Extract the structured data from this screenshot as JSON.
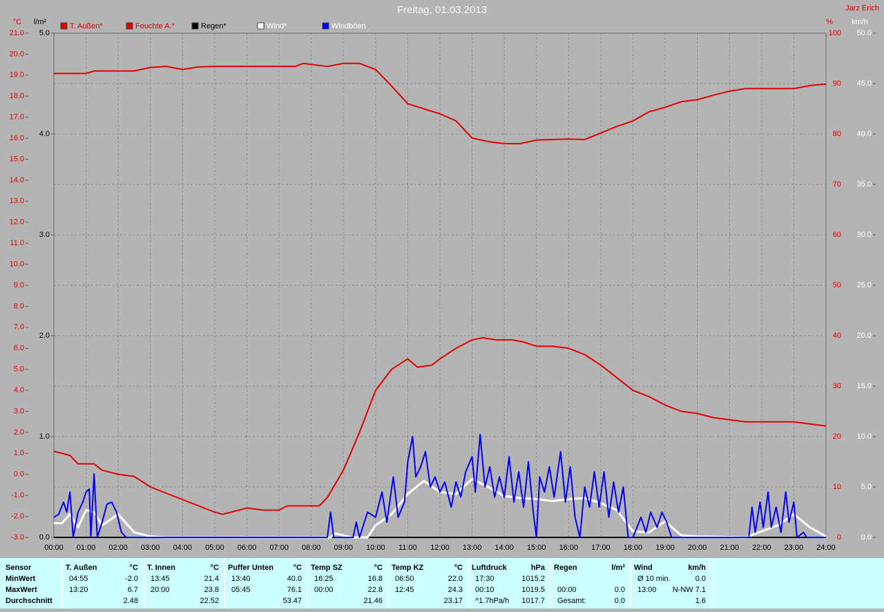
{
  "chart_data": {
    "type": "line",
    "title": "Freitag, 01.03.2013",
    "author": "Jarz Erich",
    "ylabel": "°C",
    "y2label": "%",
    "y3label": "l/m²",
    "y4label": "km/h",
    "axis_colors": {
      "y": "#e00000",
      "y2": "#e00000",
      "y3": "#000000",
      "y4": "#ffffff"
    },
    "xlim": [
      0,
      24
    ],
    "xticks": [
      {
        "value": 0,
        "label": "00:00"
      },
      {
        "value": 1,
        "label": "01:00"
      },
      {
        "value": 2,
        "label": "02:00"
      },
      {
        "value": 3,
        "label": "03:00"
      },
      {
        "value": 4,
        "label": "04:00"
      },
      {
        "value": 5,
        "label": "05:00"
      },
      {
        "value": 6,
        "label": "06:00"
      },
      {
        "value": 7,
        "label": "07:00"
      },
      {
        "value": 8,
        "label": "08:00"
      },
      {
        "value": 9,
        "label": "09:00"
      },
      {
        "value": 10,
        "label": "10:00"
      },
      {
        "value": 11,
        "label": "11:00"
      },
      {
        "value": 12,
        "label": "12:00"
      },
      {
        "value": 13,
        "label": "13:00"
      },
      {
        "value": 14,
        "label": "14:00"
      },
      {
        "value": 15,
        "label": "15:00"
      },
      {
        "value": 16,
        "label": "16:00"
      },
      {
        "value": 17,
        "label": "17:00"
      },
      {
        "value": 18,
        "label": "18:00"
      },
      {
        "value": 19,
        "label": "19:00"
      },
      {
        "value": 20,
        "label": "20:00"
      },
      {
        "value": 21,
        "label": "21:00"
      },
      {
        "value": 22,
        "label": "22:00"
      },
      {
        "value": 23,
        "label": "23:00"
      },
      {
        "value": 24,
        "label": "24:00"
      }
    ],
    "ylim": [
      -3,
      21
    ],
    "yticks": [
      {
        "value": -3,
        "label": "-3.0"
      },
      {
        "value": -2,
        "label": "-2.0"
      },
      {
        "value": -1,
        "label": "-1.0"
      },
      {
        "value": 0,
        "label": "0.0"
      },
      {
        "value": 1,
        "label": "1.0"
      },
      {
        "value": 2,
        "label": "2.0"
      },
      {
        "value": 3,
        "label": "3.0"
      },
      {
        "value": 4,
        "label": "4.0"
      },
      {
        "value": 5,
        "label": "5.0"
      },
      {
        "value": 6,
        "label": "6.0"
      },
      {
        "value": 7,
        "label": "7.0"
      },
      {
        "value": 8,
        "label": "8.0"
      },
      {
        "value": 9,
        "label": "9.0"
      },
      {
        "value": 10,
        "label": "10.0"
      },
      {
        "value": 11,
        "label": "11.0"
      },
      {
        "value": 12,
        "label": "12.0"
      },
      {
        "value": 13,
        "label": "13.0"
      },
      {
        "value": 14,
        "label": "14.0"
      },
      {
        "value": 15,
        "label": "15.0"
      },
      {
        "value": 16,
        "label": "16.0"
      },
      {
        "value": 17,
        "label": "17.0"
      },
      {
        "value": 18,
        "label": "18.0"
      },
      {
        "value": 19,
        "label": "19.0"
      },
      {
        "value": 20,
        "label": "20.0"
      },
      {
        "value": 21,
        "label": "21.0"
      }
    ],
    "y2lim": [
      0,
      100
    ],
    "y2ticks": [
      0,
      10,
      20,
      30,
      40,
      50,
      60,
      70,
      80,
      90,
      100
    ],
    "y3lim": [
      0,
      5
    ],
    "y3ticks": [
      {
        "value": 0,
        "label": "0.0"
      },
      {
        "value": 1,
        "label": "1.0"
      },
      {
        "value": 2,
        "label": "2.0"
      },
      {
        "value": 3,
        "label": "3.0"
      },
      {
        "value": 4,
        "label": "4.0"
      },
      {
        "value": 5,
        "label": "5.0"
      }
    ],
    "y4lim": [
      0,
      50
    ],
    "y4ticks": [
      {
        "value": 0,
        "label": "0.0"
      },
      {
        "value": 5,
        "label": "5.0"
      },
      {
        "value": 10,
        "label": "10.0"
      },
      {
        "value": 15,
        "label": "15.0"
      },
      {
        "value": 20,
        "label": "20.0"
      },
      {
        "value": 25,
        "label": "25.0"
      },
      {
        "value": 30,
        "label": "30.0"
      },
      {
        "value": 35,
        "label": "35.0"
      },
      {
        "value": 40,
        "label": "40.0"
      },
      {
        "value": 45,
        "label": "45.0"
      },
      {
        "value": 50,
        "label": "50.0"
      }
    ],
    "grid": true,
    "series": [
      {
        "name": "T. Außen*",
        "color": "#e00000",
        "label_color": "#e00000",
        "axis": "y",
        "x": [
          0,
          0.5,
          0.75,
          1.25,
          1.5,
          2,
          2.5,
          3,
          3.5,
          4,
          4.5,
          5,
          5.25,
          5.5,
          6,
          6.5,
          7,
          7.25,
          8,
          8.25,
          8.5,
          9,
          9.5,
          10,
          10.5,
          11,
          11.3,
          11.75,
          12,
          12.5,
          13,
          13.33,
          13.75,
          14.25,
          14.6,
          15,
          15.5,
          16,
          16.5,
          17,
          17.5,
          18,
          18.5,
          19,
          19.5,
          20,
          20.5,
          21,
          21.5,
          22,
          23,
          23.5,
          24
        ],
        "values": [
          1.1,
          0.9,
          0.5,
          0.5,
          0.2,
          0.0,
          -0.1,
          -0.6,
          -0.9,
          -1.2,
          -1.5,
          -1.8,
          -1.9,
          -1.8,
          -1.6,
          -1.7,
          -1.7,
          -1.5,
          -1.5,
          -1.5,
          -1.1,
          0.2,
          2.0,
          4.0,
          5.0,
          5.5,
          5.1,
          5.2,
          5.5,
          6.0,
          6.4,
          6.5,
          6.4,
          6.4,
          6.3,
          6.1,
          6.1,
          6.0,
          5.7,
          5.2,
          4.6,
          4.0,
          3.7,
          3.3,
          3.0,
          2.9,
          2.7,
          2.6,
          2.5,
          2.5,
          2.5,
          2.4,
          2.3
        ]
      },
      {
        "name": "Feuchte A.*",
        "color": "#e00000",
        "label_color": "#e00000",
        "axis": "y2",
        "x": [
          0,
          1,
          1.25,
          2.5,
          3,
          3.5,
          4,
          4.5,
          5,
          7.5,
          7.75,
          8.5,
          9,
          9.5,
          10,
          10.5,
          11,
          11.5,
          12,
          12.5,
          13,
          13.5,
          14,
          14.5,
          15,
          16,
          16.5,
          17,
          17.5,
          18,
          18.5,
          19,
          19.5,
          20,
          20.5,
          21,
          21.5,
          23,
          23.5,
          24
        ],
        "values": [
          92,
          92,
          92.5,
          92.5,
          93.2,
          93.4,
          92.8,
          93.3,
          93.4,
          93.4,
          94,
          93.4,
          94,
          94,
          92.8,
          89.5,
          86,
          85,
          84,
          82.6,
          79.2,
          78.5,
          78.1,
          78.1,
          78.8,
          79,
          78.9,
          80.2,
          81.5,
          82.6,
          84.4,
          85.3,
          86.4,
          86.8,
          87.7,
          88.5,
          89,
          89,
          89.6,
          89.9
        ]
      },
      {
        "name": "Regen*",
        "color": "#000000",
        "label_color": "#000000",
        "axis": "y3",
        "x": [
          0,
          24
        ],
        "values": [
          0,
          0
        ]
      },
      {
        "name": "Wind*",
        "color": "#ffffff",
        "label_color": "#ffffff",
        "axis": "y4",
        "x": [
          0,
          0.25,
          0.5,
          0.75,
          1,
          1.25,
          1.5,
          2,
          2.5,
          3,
          3.5,
          8.6,
          8.75,
          9,
          9.25,
          9.75,
          10,
          10.5,
          11,
          11.5,
          12,
          12.5,
          13,
          13.5,
          14,
          14.5,
          15,
          15.5,
          16,
          16.5,
          17,
          17.5,
          18,
          18.5,
          19,
          19.5,
          20,
          21.5,
          22,
          22.5,
          23,
          23.5,
          24
        ],
        "values": [
          1.4,
          1.4,
          2.3,
          1.0,
          2.7,
          2.5,
          1.2,
          2.3,
          0.5,
          0.1,
          0,
          0,
          0.4,
          0.2,
          0,
          0,
          1.2,
          2.3,
          4.3,
          5.6,
          4.5,
          4.3,
          5.8,
          5.0,
          4.1,
          3.9,
          3.8,
          3.6,
          3.8,
          3.9,
          3.4,
          2.7,
          0.6,
          0.5,
          1.6,
          0.2,
          0.1,
          0,
          0.6,
          1.2,
          2.3,
          1.0,
          0.1
        ]
      },
      {
        "name": "Windböen",
        "color": "#0000ff",
        "label_color": "#ffffff",
        "axis": "y4",
        "x": [
          0,
          0.15,
          0.3,
          0.4,
          0.5,
          0.6,
          0.75,
          0.9,
          1.0,
          1.1,
          1.15,
          1.25,
          1.35,
          1.5,
          1.65,
          1.8,
          1.95,
          2.1,
          2.25,
          8.5,
          8.6,
          8.7,
          9.3,
          9.4,
          9.5,
          9.75,
          10.0,
          10.2,
          10.35,
          10.55,
          10.7,
          10.9,
          11.0,
          11.15,
          11.25,
          11.4,
          11.55,
          11.7,
          11.85,
          12.0,
          12.15,
          12.35,
          12.5,
          12.65,
          12.8,
          13.0,
          13.1,
          13.25,
          13.4,
          13.55,
          13.7,
          13.85,
          14.0,
          14.15,
          14.3,
          14.45,
          14.6,
          14.75,
          14.9,
          15.0,
          15.1,
          15.25,
          15.4,
          15.55,
          15.75,
          15.9,
          16.05,
          16.2,
          16.35,
          16.5,
          16.65,
          16.8,
          16.95,
          17.1,
          17.25,
          17.4,
          17.55,
          17.7,
          17.85,
          18.0,
          18.25,
          18.4,
          18.55,
          18.75,
          18.9,
          19.05,
          19.2,
          21.6,
          21.7,
          21.8,
          21.95,
          22.05,
          22.2,
          22.3,
          22.45,
          22.6,
          22.75,
          22.85,
          23.0,
          23.1,
          23.3,
          23.4,
          24
        ],
        "values": [
          2.0,
          2.3,
          3.5,
          2.5,
          4.5,
          0,
          2.5,
          3.5,
          4.5,
          4.8,
          0,
          6.3,
          0,
          1.5,
          3.3,
          3.5,
          2.5,
          0.5,
          0,
          0,
          2.5,
          0,
          0,
          1.5,
          0,
          2.5,
          2.0,
          4.5,
          1.5,
          6.0,
          2.0,
          3.5,
          7.5,
          10.0,
          6.0,
          7.0,
          8.5,
          5.0,
          6.0,
          4.5,
          5.5,
          3.0,
          5.5,
          4.0,
          6.5,
          8.0,
          4.5,
          10.2,
          5.0,
          7.0,
          4.0,
          6.0,
          4.0,
          8.0,
          3.5,
          6.5,
          3.0,
          7.5,
          2.5,
          0,
          6.0,
          4.5,
          7.0,
          4.0,
          8.5,
          3.5,
          7.0,
          2.0,
          0,
          5.0,
          3.0,
          6.5,
          3.0,
          6.5,
          2.0,
          5.5,
          2.5,
          5.0,
          0,
          0,
          2.0,
          0.5,
          2.5,
          1.0,
          2.5,
          1.5,
          0,
          0,
          3.0,
          0.5,
          3.5,
          1.0,
          4.5,
          1.0,
          3.0,
          0.5,
          4.5,
          1.5,
          3.5,
          0,
          0.5,
          0,
          0
        ]
      }
    ]
  },
  "stats_table": {
    "row_labels": [
      "Sensor",
      "MinWert",
      "MaxWert",
      "Durchschnitt"
    ],
    "groups": [
      {
        "name": "T. Außen",
        "unit": "°C",
        "rows": [
          [
            "04:55",
            "-2.0"
          ],
          [
            "13:20",
            "6.7"
          ],
          [
            "2.48"
          ]
        ]
      },
      {
        "name": "T. Innen",
        "unit": "°C",
        "rows": [
          [
            "13:45",
            "21.4"
          ],
          [
            "20:00",
            "23.8"
          ],
          [
            "22.52"
          ]
        ]
      },
      {
        "name": "Puffer Unten",
        "unit": "°C",
        "rows": [
          [
            "13:40",
            "40.0"
          ],
          [
            "05:45",
            "76.1"
          ],
          [
            "53.47"
          ]
        ]
      },
      {
        "name": "Temp SZ",
        "unit": "°C",
        "rows": [
          [
            "16:25",
            "16.8"
          ],
          [
            "00:00",
            "22.8"
          ],
          [
            "21.46"
          ]
        ]
      },
      {
        "name": "Temp KZ",
        "unit": "°C",
        "rows": [
          [
            "06:50",
            "22.0"
          ],
          [
            "12:45",
            "24.3"
          ],
          [
            "23.17"
          ]
        ]
      },
      {
        "name": "Luftdruck",
        "unit": "hPa",
        "rows": [
          [
            "17:30",
            "1015.2"
          ],
          [
            "00:10",
            "1019.5"
          ],
          [
            "^1.7hPa/h",
            "1017.7"
          ]
        ]
      },
      {
        "name": "Regen",
        "unit": "l/m²",
        "rows": [
          [],
          [
            "00:00",
            "0.0"
          ],
          [
            "Gesamt:",
            "0.0"
          ]
        ]
      },
      {
        "name": "Wind",
        "unit": "km/h",
        "rows": [
          [
            "Ø 10 min.",
            "0.0"
          ],
          [
            "13:00",
            "N-NW 7.1"
          ],
          [
            "1.6"
          ]
        ]
      }
    ]
  }
}
